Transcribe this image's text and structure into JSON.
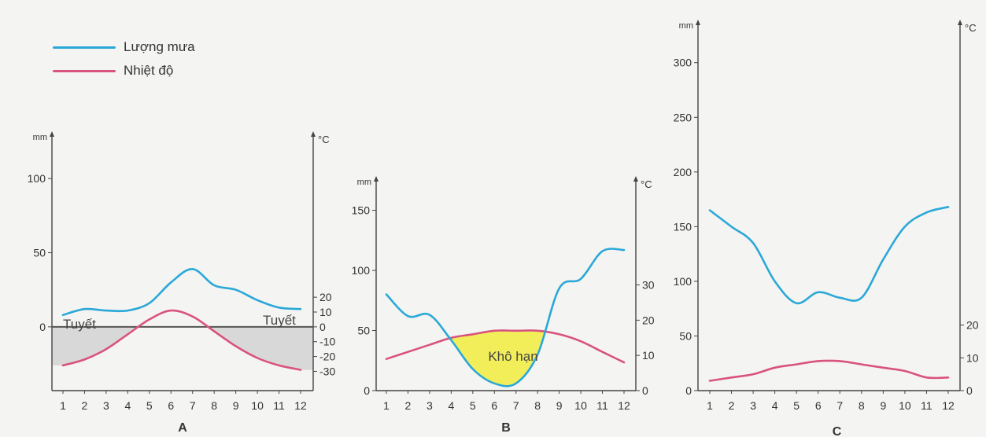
{
  "legend": [
    {
      "label": "Lượng mưa",
      "color": "#2aa8d8"
    },
    {
      "label": "Nhiệt độ",
      "color": "#d9537f"
    }
  ],
  "chart_data": [
    {
      "type": "line",
      "title": "A",
      "x": [
        1,
        2,
        3,
        4,
        5,
        6,
        7,
        8,
        9,
        10,
        11,
        12
      ],
      "x_ticks": [
        "1",
        "2",
        "3",
        "4",
        "5",
        "6",
        "7",
        "8",
        "9",
        "10",
        "11",
        "12"
      ],
      "left_axis": {
        "unit": "mm",
        "ticks": [
          0,
          50,
          100
        ],
        "ylim": [
          -43,
          125
        ]
      },
      "right_axis": {
        "unit": "°C",
        "ticks": [
          -30,
          -20,
          -10,
          0,
          10,
          20
        ],
        "ylim": [
          -43,
          125
        ]
      },
      "series": [
        {
          "name": "Lượng mưa",
          "axis": "left",
          "color": "#2aa8d8",
          "values": [
            8,
            12,
            11,
            11,
            16,
            30,
            39,
            28,
            25,
            18,
            13,
            12
          ]
        },
        {
          "name": "Nhiệt độ",
          "axis": "right",
          "color": "#d9537f",
          "values": [
            -26,
            -22,
            -15,
            -5,
            5,
            11,
            7,
            -3,
            -13,
            -21,
            -26,
            -29
          ]
        }
      ],
      "annotations": [
        {
          "text": "Tuyết",
          "side": "left",
          "color": "#d8d8d8"
        },
        {
          "text": "Tuyết",
          "side": "right",
          "color": "#d8d8d8"
        }
      ]
    },
    {
      "type": "line",
      "title": "B",
      "x": [
        1,
        2,
        3,
        4,
        5,
        6,
        7,
        8,
        9,
        10,
        11,
        12
      ],
      "x_ticks": [
        "1",
        "2",
        "3",
        "4",
        "5",
        "6",
        "7",
        "8",
        "9",
        "10",
        "11",
        "12"
      ],
      "left_axis": {
        "unit": "mm",
        "ticks": [
          0,
          50,
          100,
          150
        ],
        "ylim": [
          0,
          170
        ]
      },
      "right_axis": {
        "unit": "°C",
        "ticks": [
          0,
          10,
          20,
          30
        ],
        "ylim": [
          0,
          58
        ]
      },
      "series": [
        {
          "name": "Lượng mưa",
          "axis": "left",
          "color": "#2aa8d8",
          "values": [
            80,
            62,
            63,
            42,
            18,
            6,
            6,
            30,
            85,
            93,
            116,
            117
          ]
        },
        {
          "name": "Nhiệt độ",
          "axis": "right",
          "color": "#d9537f",
          "values": [
            9,
            11,
            13,
            15,
            16,
            17,
            17,
            17,
            16,
            14,
            11,
            8
          ]
        }
      ],
      "annotations": [
        {
          "text": "Khô hạn",
          "color": "#f2ee5a"
        }
      ]
    },
    {
      "type": "line",
      "title": "C",
      "x": [
        1,
        2,
        3,
        4,
        5,
        6,
        7,
        8,
        9,
        10,
        11,
        12
      ],
      "x_ticks": [
        "1",
        "2",
        "3",
        "4",
        "5",
        "6",
        "7",
        "8",
        "9",
        "10",
        "11",
        "12"
      ],
      "left_axis": {
        "unit": "mm",
        "ticks": [
          0,
          50,
          100,
          150,
          200,
          250,
          300
        ],
        "ylim": [
          0,
          330
        ]
      },
      "right_axis": {
        "unit": "°C",
        "ticks": [
          0,
          10,
          20
        ],
        "ylim": [
          0,
          110
        ]
      },
      "series": [
        {
          "name": "Lượng mưa",
          "axis": "left",
          "color": "#2aa8d8",
          "values": [
            165,
            150,
            135,
            100,
            80,
            90,
            85,
            85,
            120,
            150,
            163,
            168
          ]
        },
        {
          "name": "Nhiệt độ",
          "axis": "right",
          "color": "#d9537f",
          "values": [
            3,
            4,
            5,
            7,
            8,
            9,
            9,
            8,
            7,
            6,
            4,
            4
          ]
        }
      ]
    }
  ]
}
